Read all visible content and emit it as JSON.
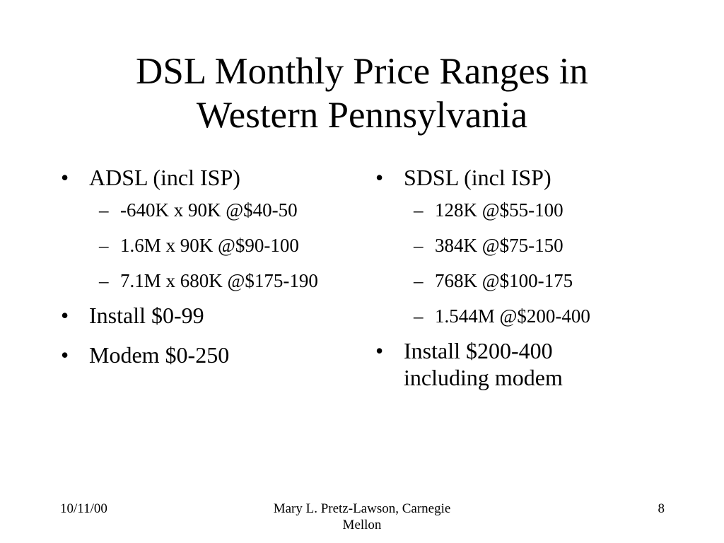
{
  "slide": {
    "title_line1": "DSL Monthly Price Ranges in",
    "title_line2": "Western Pennsylvania",
    "bullet_glyph": "•",
    "dash_glyph": "–",
    "left_column": {
      "heading": "ADSL (incl ISP)",
      "subitems": [
        "-640K x 90K @$40-50",
        "1.6M x 90K @$90-100",
        "7.1M x 680K @$175-190"
      ],
      "install": "Install $0-99",
      "modem": "Modem $0-250"
    },
    "right_column": {
      "heading": "SDSL (incl ISP)",
      "subitems": [
        "128K @$55-100",
        "384K @$75-150",
        "768K @$100-175",
        "1.544M @$200-400"
      ],
      "install": "Install $200-400 including modem"
    },
    "footer": {
      "date": "10/11/00",
      "author": "Mary L. Pretz-Lawson, Carnegie Mellon",
      "page": "8"
    }
  }
}
